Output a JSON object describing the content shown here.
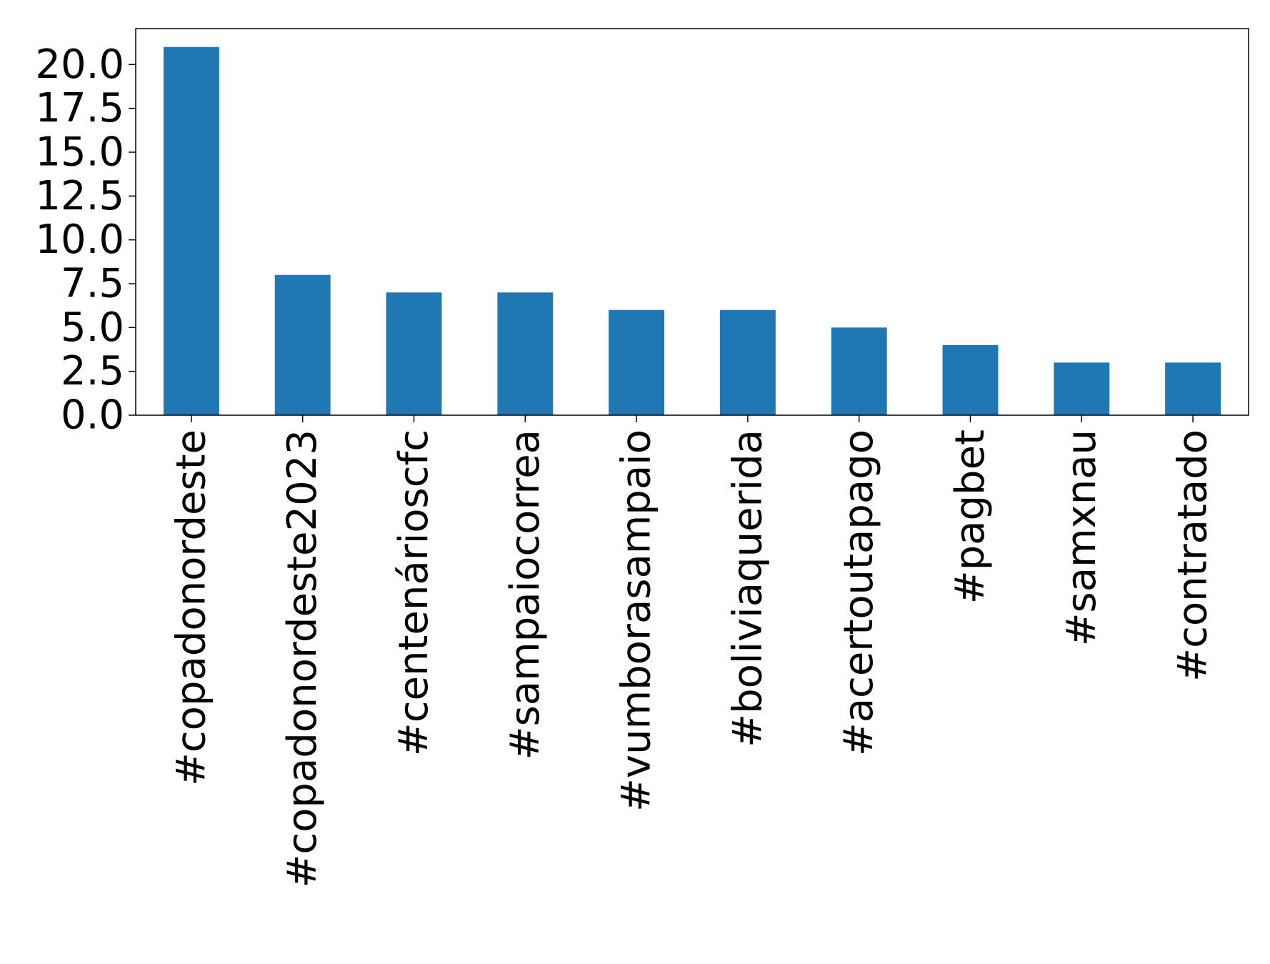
{
  "chart_data": {
    "type": "bar",
    "title": "",
    "xlabel": "",
    "ylabel": "",
    "categories": [
      "#copadonordeste",
      "#copadonordeste2023",
      "#centenárioscfc",
      "#sampaiocorrea",
      "#vumborasampaio",
      "#boliviaquerida",
      "#acertoutapago",
      "#pagbet",
      "#samxnau",
      "#contratado"
    ],
    "values": [
      21,
      8,
      7,
      7,
      6,
      6,
      5,
      4,
      3,
      3
    ],
    "ylim": [
      0,
      22.05
    ],
    "yticks": [
      "0.0",
      "2.5",
      "5.0",
      "7.5",
      "10.0",
      "12.5",
      "15.0",
      "17.5",
      "20.0"
    ],
    "grid": false,
    "legend": "none",
    "bar_color": "#1f77b4"
  }
}
